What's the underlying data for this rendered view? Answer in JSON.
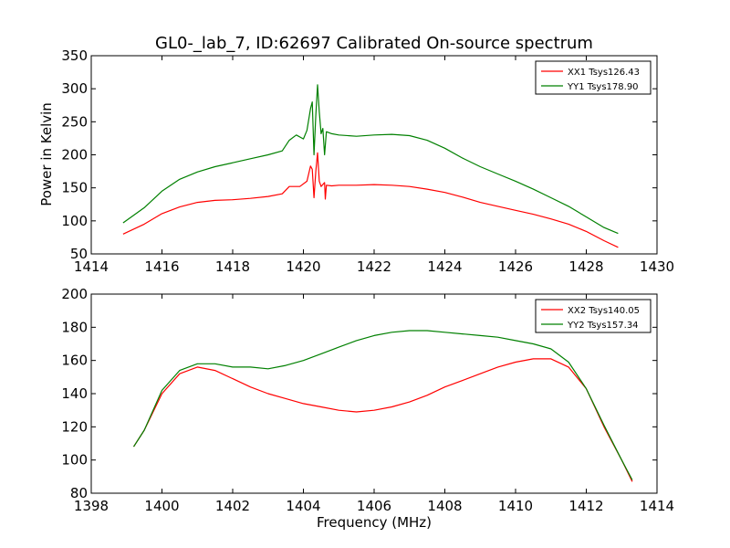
{
  "figure": {
    "title": "GL0-_lab_7, ID:62697 Calibrated On-source spectrum",
    "ylabel": "Power in Kelvin",
    "xlabel": "Frequency (MHz)"
  },
  "colors": {
    "red": "#ff0000",
    "green": "#008000"
  },
  "chart_data": [
    {
      "type": "line",
      "ylabel": "Power in Kelvin",
      "xlabel": "",
      "xlim": [
        1414,
        1430
      ],
      "ylim": [
        50,
        350
      ],
      "xticks": [
        "1414",
        "1416",
        "1418",
        "1420",
        "1422",
        "1424",
        "1426",
        "1428",
        "1430"
      ],
      "yticks": [
        "50",
        "100",
        "150",
        "200",
        "250",
        "300",
        "350"
      ],
      "legend_position": "top-right",
      "series": [
        {
          "name": "XX1 Tsys126.43",
          "color": "#ff0000",
          "points": [
            [
              1414.9,
              80
            ],
            [
              1415.5,
              95
            ],
            [
              1416.0,
              111
            ],
            [
              1416.5,
              121
            ],
            [
              1417.0,
              128
            ],
            [
              1417.5,
              131
            ],
            [
              1418.0,
              132
            ],
            [
              1418.5,
              134
            ],
            [
              1419.0,
              137
            ],
            [
              1419.4,
              141
            ],
            [
              1419.6,
              152
            ],
            [
              1419.9,
              152
            ],
            [
              1420.1,
              160
            ],
            [
              1420.2,
              183
            ],
            [
              1420.25,
              178
            ],
            [
              1420.3,
              135
            ],
            [
              1420.35,
              175
            ],
            [
              1420.4,
              203
            ],
            [
              1420.45,
              160
            ],
            [
              1420.5,
              152
            ],
            [
              1420.6,
              158
            ],
            [
              1420.62,
              133
            ],
            [
              1420.65,
              154
            ],
            [
              1420.8,
              153
            ],
            [
              1421.0,
              154
            ],
            [
              1421.5,
              154
            ],
            [
              1422.0,
              155
            ],
            [
              1422.5,
              154
            ],
            [
              1423.0,
              152
            ],
            [
              1423.5,
              148
            ],
            [
              1424.0,
              143
            ],
            [
              1424.5,
              136
            ],
            [
              1425.0,
              128
            ],
            [
              1425.5,
              122
            ],
            [
              1426.0,
              116
            ],
            [
              1426.5,
              110
            ],
            [
              1427.0,
              103
            ],
            [
              1427.5,
              95
            ],
            [
              1428.0,
              84
            ],
            [
              1428.5,
              70
            ],
            [
              1428.9,
              60
            ]
          ]
        },
        {
          "name": "YY1 Tsys178.90",
          "color": "#008000",
          "points": [
            [
              1414.9,
              97
            ],
            [
              1415.5,
              120
            ],
            [
              1416.0,
              145
            ],
            [
              1416.5,
              163
            ],
            [
              1417.0,
              174
            ],
            [
              1417.5,
              182
            ],
            [
              1418.0,
              188
            ],
            [
              1418.5,
              194
            ],
            [
              1419.0,
              200
            ],
            [
              1419.4,
              206
            ],
            [
              1419.6,
              222
            ],
            [
              1419.8,
              230
            ],
            [
              1420.0,
              224
            ],
            [
              1420.1,
              237
            ],
            [
              1420.2,
              270
            ],
            [
              1420.25,
              280
            ],
            [
              1420.3,
              200
            ],
            [
              1420.35,
              260
            ],
            [
              1420.4,
              306
            ],
            [
              1420.45,
              265
            ],
            [
              1420.5,
              232
            ],
            [
              1420.55,
              240
            ],
            [
              1420.6,
              200
            ],
            [
              1420.65,
              235
            ],
            [
              1420.8,
              232
            ],
            [
              1421.0,
              230
            ],
            [
              1421.5,
              228
            ],
            [
              1422.0,
              230
            ],
            [
              1422.5,
              231
            ],
            [
              1423.0,
              229
            ],
            [
              1423.5,
              222
            ],
            [
              1424.0,
              210
            ],
            [
              1424.5,
              195
            ],
            [
              1425.0,
              182
            ],
            [
              1425.5,
              171
            ],
            [
              1426.0,
              160
            ],
            [
              1426.5,
              148
            ],
            [
              1427.0,
              135
            ],
            [
              1427.5,
              122
            ],
            [
              1428.0,
              106
            ],
            [
              1428.5,
              90
            ],
            [
              1428.9,
              81
            ]
          ]
        }
      ]
    },
    {
      "type": "line",
      "ylabel": "",
      "xlabel": "Frequency (MHz)",
      "xlim": [
        1398,
        1414
      ],
      "ylim": [
        80,
        200
      ],
      "xticks": [
        "1398",
        "1400",
        "1402",
        "1404",
        "1406",
        "1408",
        "1410",
        "1412",
        "1414"
      ],
      "yticks": [
        "80",
        "100",
        "120",
        "140",
        "160",
        "180",
        "200"
      ],
      "legend_position": "top-right",
      "series": [
        {
          "name": "XX2 Tsys140.05",
          "color": "#ff0000",
          "points": [
            [
              1399.2,
              108
            ],
            [
              1399.5,
              118
            ],
            [
              1400.0,
              140
            ],
            [
              1400.5,
              152
            ],
            [
              1401.0,
              156
            ],
            [
              1401.5,
              154
            ],
            [
              1402.0,
              149
            ],
            [
              1402.5,
              144
            ],
            [
              1403.0,
              140
            ],
            [
              1403.5,
              137
            ],
            [
              1404.0,
              134
            ],
            [
              1404.5,
              132
            ],
            [
              1405.0,
              130
            ],
            [
              1405.5,
              129
            ],
            [
              1406.0,
              130
            ],
            [
              1406.5,
              132
            ],
            [
              1407.0,
              135
            ],
            [
              1407.5,
              139
            ],
            [
              1408.0,
              144
            ],
            [
              1408.5,
              148
            ],
            [
              1409.0,
              152
            ],
            [
              1409.5,
              156
            ],
            [
              1410.0,
              159
            ],
            [
              1410.5,
              161
            ],
            [
              1411.0,
              161
            ],
            [
              1411.5,
              156
            ],
            [
              1412.0,
              143
            ],
            [
              1412.5,
              120
            ],
            [
              1413.0,
              100
            ],
            [
              1413.3,
              87
            ]
          ]
        },
        {
          "name": "YY2 Tsys157.34",
          "color": "#008000",
          "points": [
            [
              1399.2,
              108
            ],
            [
              1399.5,
              118
            ],
            [
              1400.0,
              142
            ],
            [
              1400.5,
              154
            ],
            [
              1401.0,
              158
            ],
            [
              1401.5,
              158
            ],
            [
              1402.0,
              156
            ],
            [
              1402.5,
              156
            ],
            [
              1403.0,
              155
            ],
            [
              1403.5,
              157
            ],
            [
              1404.0,
              160
            ],
            [
              1404.5,
              164
            ],
            [
              1405.0,
              168
            ],
            [
              1405.5,
              172
            ],
            [
              1406.0,
              175
            ],
            [
              1406.5,
              177
            ],
            [
              1407.0,
              178
            ],
            [
              1407.5,
              178
            ],
            [
              1408.0,
              177
            ],
            [
              1408.5,
              176
            ],
            [
              1409.0,
              175
            ],
            [
              1409.5,
              174
            ],
            [
              1410.0,
              172
            ],
            [
              1410.5,
              170
            ],
            [
              1411.0,
              167
            ],
            [
              1411.5,
              159
            ],
            [
              1412.0,
              143
            ],
            [
              1412.5,
              121
            ],
            [
              1413.0,
              100
            ],
            [
              1413.3,
              88
            ]
          ]
        }
      ]
    }
  ]
}
